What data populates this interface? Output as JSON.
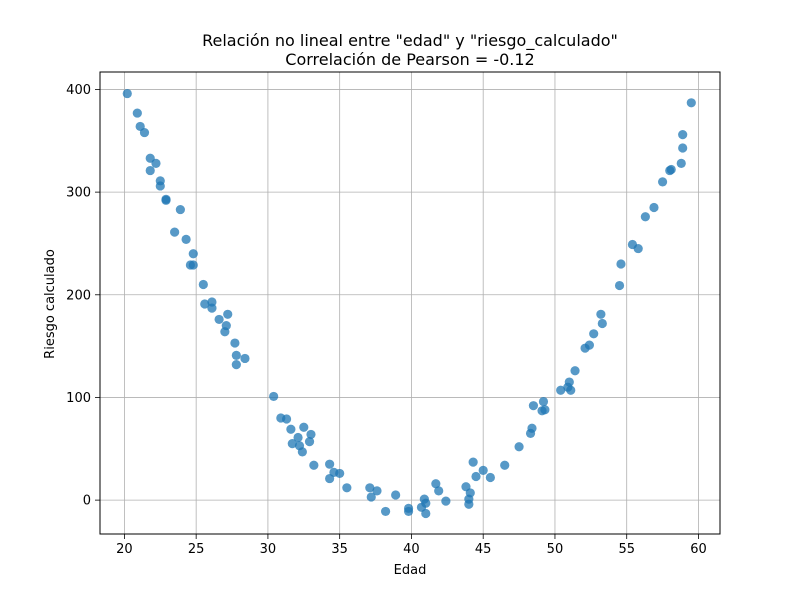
{
  "chart_data": {
    "type": "scatter",
    "title": "Relación no lineal entre \"edad\" y \"riesgo_calculado\"",
    "subtitle": "Correlación de Pearson = -0.12",
    "xlabel": "Edad",
    "ylabel": "Riesgo calculado",
    "xlim": [
      18.3,
      61.5
    ],
    "ylim": [
      -33,
      417
    ],
    "xticks": [
      20,
      25,
      30,
      35,
      40,
      45,
      50,
      55,
      60
    ],
    "yticks": [
      0,
      100,
      200,
      300,
      400
    ],
    "grid": true,
    "marker_color": "#1f77b4",
    "x": [
      20.2,
      20.9,
      21.1,
      21.4,
      21.8,
      21.8,
      22.2,
      22.5,
      22.5,
      22.9,
      22.9,
      23.5,
      23.9,
      24.3,
      24.6,
      24.8,
      24.8,
      25.5,
      25.6,
      26.1,
      26.1,
      26.6,
      27.0,
      27.1,
      27.2,
      27.7,
      27.8,
      27.8,
      28.4,
      30.4,
      30.9,
      31.3,
      31.6,
      31.7,
      32.1,
      32.2,
      32.4,
      32.5,
      32.9,
      33.0,
      33.2,
      34.3,
      34.3,
      34.6,
      35.0,
      35.5,
      37.1,
      37.2,
      37.6,
      38.2,
      38.9,
      39.8,
      39.8,
      40.7,
      40.9,
      41.0,
      41.0,
      41.7,
      41.9,
      42.4,
      43.8,
      44.0,
      44.0,
      44.1,
      44.3,
      44.5,
      45.0,
      45.5,
      46.5,
      47.5,
      48.3,
      48.4,
      48.5,
      49.1,
      49.2,
      49.3,
      50.4,
      50.9,
      51.0,
      51.1,
      51.4,
      52.1,
      52.4,
      52.7,
      53.2,
      53.3,
      54.5,
      54.6,
      55.4,
      55.8,
      56.3,
      56.9,
      57.5,
      58.0,
      58.1,
      58.8,
      58.9,
      58.9,
      59.5
    ],
    "y": [
      396,
      377,
      364,
      358,
      333,
      321,
      328,
      311,
      306,
      293,
      292,
      261,
      283,
      254,
      229,
      240,
      229,
      210,
      191,
      193,
      187,
      176,
      164,
      170,
      181,
      153,
      132,
      141,
      138,
      101,
      80,
      79,
      69,
      55,
      61,
      53,
      47,
      71,
      57,
      64,
      34,
      35,
      21,
      27,
      26,
      12,
      12,
      3,
      9,
      -11,
      5,
      -11,
      -8,
      -7,
      1,
      -3,
      -13,
      16,
      9,
      -1,
      13,
      1,
      -4,
      7,
      37,
      23,
      29,
      22,
      34,
      52,
      65,
      70,
      92,
      87,
      96,
      88,
      107,
      110,
      115,
      107,
      126,
      148,
      151,
      162,
      181,
      172,
      209,
      230,
      249,
      245,
      276,
      285,
      310,
      321,
      322,
      328,
      343,
      356,
      387
    ]
  }
}
